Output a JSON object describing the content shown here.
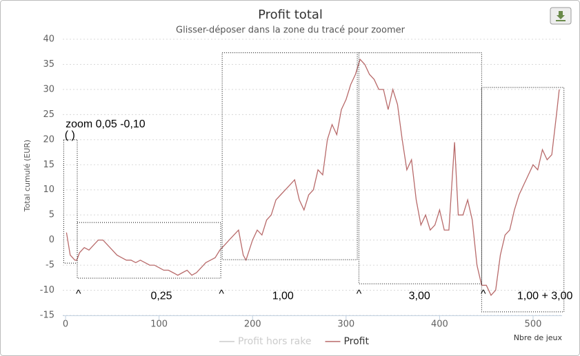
{
  "chart_data": {
    "type": "line",
    "title": "Profit total",
    "subtitle": "Glisser-déposer dans la zone du tracé pour zoomer",
    "y_label": "Total cumulé (EUR)",
    "x_label": "Nbre de jeux",
    "xlim": [
      -3,
      531
    ],
    "xticks": [
      0,
      100,
      200,
      300,
      400,
      500
    ],
    "ylim": [
      -15,
      40
    ],
    "yticks": [
      -15,
      -10,
      -5,
      0,
      5,
      10,
      15,
      20,
      25,
      30,
      35,
      40
    ],
    "grid": true,
    "x": [
      1,
      5,
      10,
      12,
      15,
      20,
      25,
      30,
      35,
      40,
      45,
      50,
      55,
      60,
      65,
      70,
      75,
      80,
      85,
      90,
      95,
      100,
      105,
      110,
      115,
      120,
      125,
      130,
      135,
      140,
      145,
      150,
      155,
      160,
      165,
      170,
      175,
      180,
      185,
      190,
      193,
      200,
      205,
      210,
      215,
      220,
      225,
      230,
      235,
      240,
      245,
      250,
      255,
      260,
      265,
      270,
      275,
      280,
      285,
      290,
      295,
      300,
      305,
      310,
      315,
      320,
      325,
      330,
      335,
      340,
      345,
      350,
      355,
      360,
      365,
      370,
      375,
      380,
      385,
      390,
      395,
      400,
      405,
      410,
      416,
      420,
      425,
      430,
      435,
      440,
      445,
      450,
      455,
      460,
      465,
      470,
      475,
      480,
      485,
      490,
      495,
      500,
      505,
      510,
      515,
      520,
      525,
      528
    ],
    "series": [
      {
        "name": "Profit hors rake",
        "color": "#cccccc",
        "hidden": true
      },
      {
        "name": "Profit",
        "color": "#b86a6a",
        "values": [
          1.5,
          -3,
          -4,
          -4,
          -2.5,
          -1.5,
          -2,
          -1,
          0,
          0,
          -1,
          -2,
          -3,
          -3.5,
          -4,
          -4,
          -4.5,
          -4,
          -4.5,
          -5,
          -5,
          -5.5,
          -6,
          -6,
          -6.5,
          -7,
          -6.5,
          -6,
          -7,
          -6.5,
          -5.5,
          -4.5,
          -4,
          -3.5,
          -2,
          -1,
          0,
          1,
          2,
          -3,
          -4,
          0,
          2,
          1,
          4,
          5,
          8,
          9,
          10,
          11,
          12,
          8,
          6,
          9,
          10,
          14,
          13,
          20,
          23,
          21,
          26,
          28,
          31,
          33,
          36,
          35,
          33,
          32,
          30,
          30,
          26,
          30,
          27,
          20,
          14,
          16,
          8,
          3,
          5,
          2,
          3,
          6,
          2,
          2,
          19.5,
          5,
          5,
          8,
          4,
          -5,
          -9,
          -9,
          -11,
          -10,
          -3,
          1,
          2,
          6,
          9,
          11,
          13,
          15,
          14,
          18,
          16,
          17,
          25,
          30
        ]
      }
    ],
    "legend": "bottom",
    "boxes": [
      {
        "x0": -2,
        "x1": 12.5,
        "y0": -4.6,
        "y1": 20
      },
      {
        "x0": 12.5,
        "x1": 166,
        "y0": -7.6,
        "y1": 3.5
      },
      {
        "x0": 167.5,
        "x1": 312,
        "y0": -3.9,
        "y1": 37.3
      },
      {
        "x0": 313.7,
        "x1": 445,
        "y0": -8.7,
        "y1": 37.3
      },
      {
        "x0": 445,
        "x1": 533,
        "y0": -14.3,
        "y1": 30.4
      }
    ],
    "annotations": [
      {
        "text": "zoom  0,05 -0,10",
        "x": 0,
        "y": 23
      },
      {
        "text": "(    )",
        "x": -1,
        "y": 20.8
      },
      {
        "text": "^",
        "x": 11,
        "y": -10.8
      },
      {
        "text": "0,25",
        "x": 91,
        "y": -11.2
      },
      {
        "text": "^",
        "x": 164,
        "y": -10.8
      },
      {
        "text": "1,00",
        "x": 221,
        "y": -11.2
      },
      {
        "text": "^",
        "x": 311,
        "y": -10.8
      },
      {
        "text": "3,00",
        "x": 367,
        "y": -11.2
      },
      {
        "text": "^",
        "x": 444,
        "y": -10.8
      },
      {
        "text": "1,00 + 3,00",
        "x": 483,
        "y": -11.2
      }
    ]
  }
}
